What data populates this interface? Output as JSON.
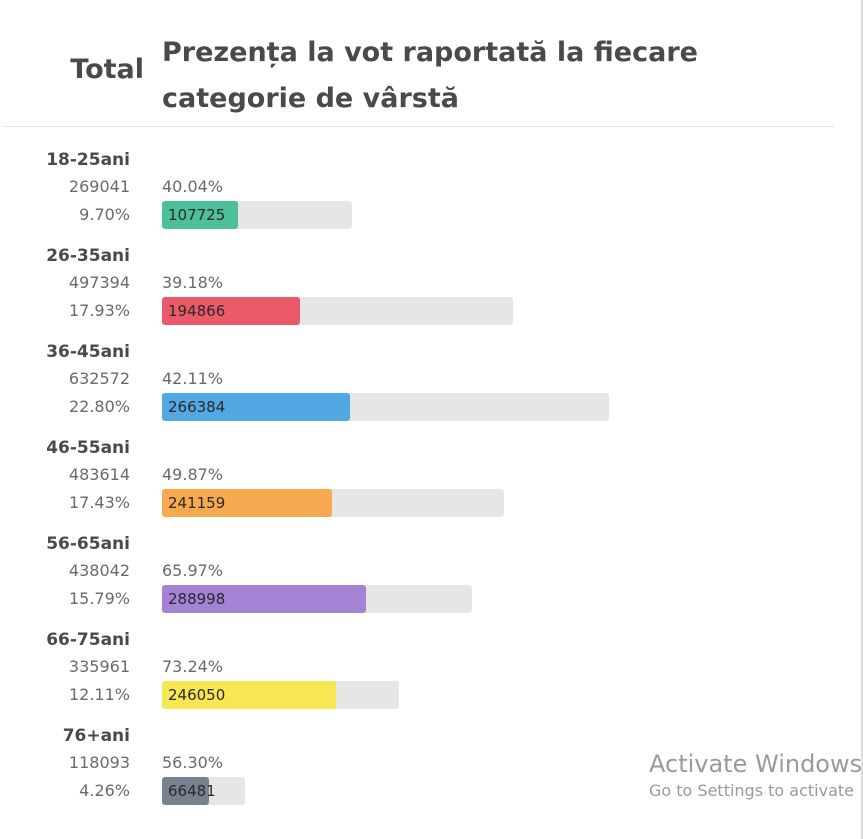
{
  "header": {
    "total_label": "Total",
    "title": "Prezența la vot raportată la fiecare categorie de vârstă"
  },
  "chart_data": {
    "type": "bar",
    "title": "Prezența la vot raportată la fiecare categorie de vârstă",
    "column_label": "Total",
    "categories": [
      "18-25ani",
      "26-35ani",
      "36-45ani",
      "46-55ani",
      "56-65ani",
      "66-75ani",
      "76+ani"
    ],
    "totals": [
      269041,
      497394,
      632572,
      483614,
      438042,
      335961,
      118093
    ],
    "totals_text": [
      "269041",
      "497394",
      "632572",
      "483614",
      "438042",
      "335961",
      "118093"
    ],
    "share_of_total": [
      "9.70%",
      "17.93%",
      "22.80%",
      "17.43%",
      "15.79%",
      "12.11%",
      "4.26%"
    ],
    "turnout": [
      "40.04%",
      "39.18%",
      "42.11%",
      "49.87%",
      "65.97%",
      "73.24%",
      "56.30%"
    ],
    "voters": [
      107725,
      194866,
      266384,
      241159,
      288998,
      246050,
      66481
    ],
    "voters_text": [
      "107725",
      "194866",
      "266384",
      "241159",
      "288998",
      "246050",
      "66481"
    ],
    "colors": [
      "#4dbf9a",
      "#ea5a68",
      "#52a8e2",
      "#f7a950",
      "#a483d6",
      "#f8e653",
      "#76828f"
    ]
  },
  "watermark": {
    "title": "Activate Windows",
    "subtitle": "Go to Settings to activate"
  }
}
